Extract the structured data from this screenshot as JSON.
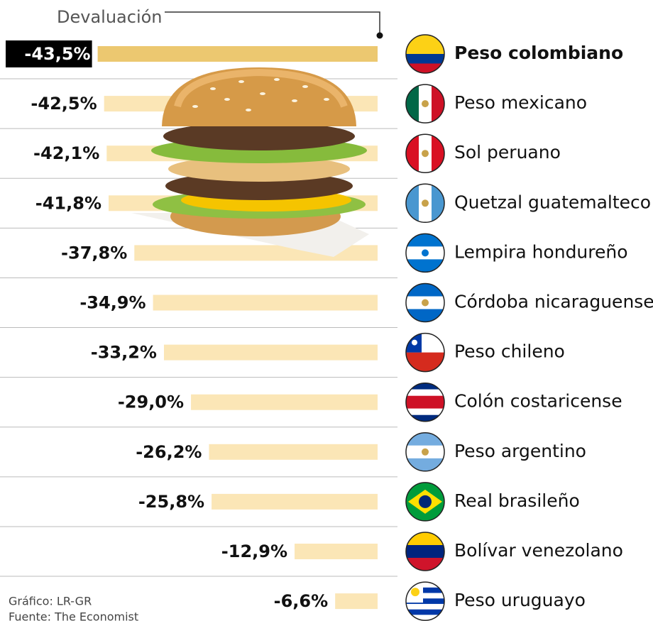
{
  "chart_data": {
    "type": "bar",
    "orientation": "horizontal",
    "title": "Devaluación",
    "categories": [
      "Peso colombiano",
      "Peso mexicano",
      "Sol peruano",
      "Quetzal guatemalteco",
      "Lempira hondureño",
      "Córdoba nicaraguense",
      "Peso chileno",
      "Colón costaricense",
      "Peso argentino",
      "Real brasileño",
      "Bolívar venezolano",
      "Peso uruguayo"
    ],
    "values": [
      -43.5,
      -42.5,
      -42.1,
      -41.8,
      -37.8,
      -34.9,
      -33.2,
      -29.0,
      -26.2,
      -25.8,
      -12.9,
      -6.6
    ],
    "value_labels": [
      "-43,5%",
      "-42,5%",
      "-42,1%",
      "-41,8%",
      "-37,8%",
      "-34,9%",
      "-33,2%",
      "-29,0%",
      "-26,2%",
      "-25,8%",
      "-12,9%",
      "-6,6%"
    ],
    "colors": [
      "#ecc870",
      "#fbe6b6",
      "#fbe6b6",
      "#fbe6b6",
      "#fbe6b6",
      "#fbe6b6",
      "#fbe6b6",
      "#fbe6b6",
      "#fbe6b6",
      "#fbe6b6",
      "#fbe6b6",
      "#fbe6b6"
    ],
    "xlim": [
      -45,
      0
    ],
    "footer": [
      "Gráfico: LR-GR",
      "Fuente: The Economist"
    ]
  }
}
